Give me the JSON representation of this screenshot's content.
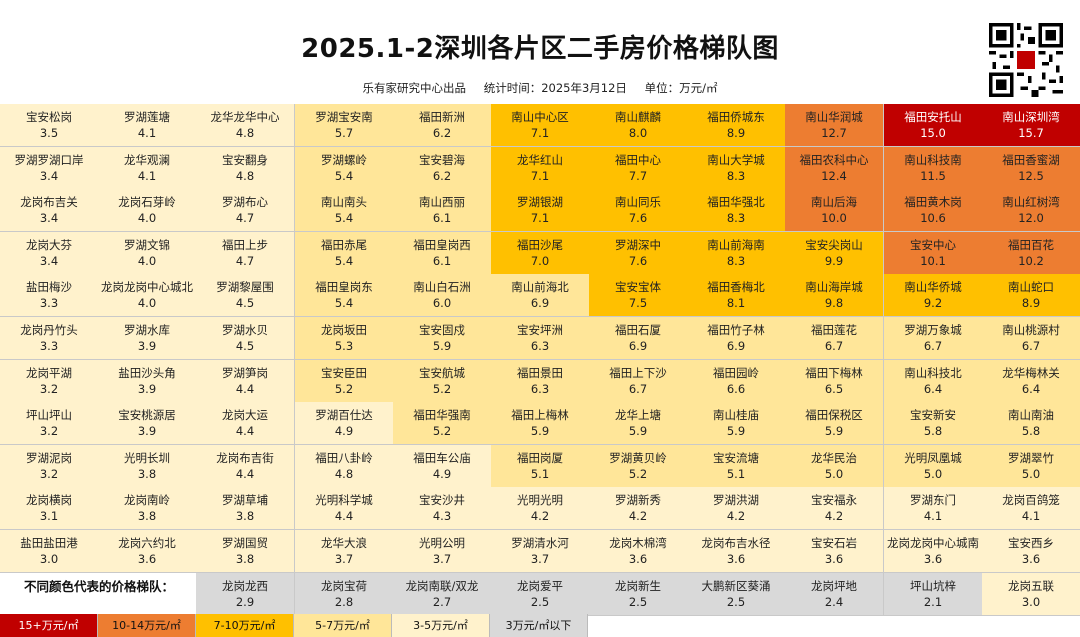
{
  "header": {
    "title": "2025.1-2深圳各片区二手房价格梯队图",
    "org": "乐有家研究中心出品",
    "stat_time": "统计时间：2025年3月12日",
    "unit": "单位：万元/㎡"
  },
  "legend": {
    "caption": "不同颜色代表的价格梯队：",
    "tiers": [
      {
        "label": "15+万元/㎡",
        "color": "#c00000"
      },
      {
        "label": "10-14万元/㎡",
        "color": "#ed7d31"
      },
      {
        "label": "7-10万元/㎡",
        "color": "#ffc000"
      },
      {
        "label": "5-7万元/㎡",
        "color": "#ffe699"
      },
      {
        "label": "3-5万元/㎡",
        "color": "#fff2cc"
      },
      {
        "label": "3万元/㎡以下",
        "color": "#d9d9d9"
      }
    ]
  },
  "chart_data": {
    "type": "table",
    "title": "2025.1-2深圳各片区二手房价格梯队图",
    "unit": "万元/㎡",
    "columns": [
      [
        {
          "name": "宝安松岗",
          "price": "3.5",
          "tier": 5
        },
        {
          "name": "罗湖罗湖口岸",
          "price": "3.4",
          "tier": 5
        },
        {
          "name": "龙岗布吉关",
          "price": "3.4",
          "tier": 5
        },
        {
          "name": "龙岗大芬",
          "price": "3.4",
          "tier": 5
        },
        {
          "name": "盐田梅沙",
          "price": "3.3",
          "tier": 5
        },
        {
          "name": "龙岗丹竹头",
          "price": "3.3",
          "tier": 5
        },
        {
          "name": "龙岗平湖",
          "price": "3.2",
          "tier": 5
        },
        {
          "name": "坪山坪山",
          "price": "3.2",
          "tier": 5
        },
        {
          "name": "罗湖泥岗",
          "price": "3.2",
          "tier": 5
        },
        {
          "name": "龙岗横岗",
          "price": "3.1",
          "tier": 5
        },
        {
          "name": "盐田盐田港",
          "price": "3.0",
          "tier": 5
        }
      ],
      [
        {
          "name": "罗湖莲塘",
          "price": "4.1",
          "tier": 5
        },
        {
          "name": "龙华观澜",
          "price": "4.1",
          "tier": 5
        },
        {
          "name": "龙岗石芽岭",
          "price": "4.0",
          "tier": 5
        },
        {
          "name": "罗湖文锦",
          "price": "4.0",
          "tier": 5
        },
        {
          "name": "龙岗龙岗中心城北",
          "price": "4.0",
          "tier": 5
        },
        {
          "name": "罗湖水库",
          "price": "3.9",
          "tier": 5
        },
        {
          "name": "盐田沙头角",
          "price": "3.9",
          "tier": 5
        },
        {
          "name": "宝安桃源居",
          "price": "3.9",
          "tier": 5
        },
        {
          "name": "光明长圳",
          "price": "3.8",
          "tier": 5
        },
        {
          "name": "龙岗南岭",
          "price": "3.8",
          "tier": 5
        },
        {
          "name": "龙岗六约北",
          "price": "3.6",
          "tier": 5
        }
      ],
      [
        {
          "name": "龙华龙华中心",
          "price": "4.8",
          "tier": 5
        },
        {
          "name": "宝安翻身",
          "price": "4.8",
          "tier": 5
        },
        {
          "name": "罗湖布心",
          "price": "4.7",
          "tier": 5
        },
        {
          "name": "福田上步",
          "price": "4.7",
          "tier": 5
        },
        {
          "name": "罗湖黎屋围",
          "price": "4.5",
          "tier": 5
        },
        {
          "name": "罗湖水贝",
          "price": "4.5",
          "tier": 5
        },
        {
          "name": "罗湖笋岗",
          "price": "4.4",
          "tier": 5
        },
        {
          "name": "龙岗大运",
          "price": "4.4",
          "tier": 5
        },
        {
          "name": "龙岗布吉街",
          "price": "4.4",
          "tier": 5
        },
        {
          "name": "罗湖草埔",
          "price": "3.8",
          "tier": 5
        },
        {
          "name": "罗湖国贸",
          "price": "3.8",
          "tier": 5
        }
      ],
      [
        {
          "name": "罗湖宝安南",
          "price": "5.7",
          "tier": 4
        },
        {
          "name": "罗湖螺岭",
          "price": "5.4",
          "tier": 4
        },
        {
          "name": "南山南头",
          "price": "5.4",
          "tier": 4
        },
        {
          "name": "福田赤尾",
          "price": "5.4",
          "tier": 4
        },
        {
          "name": "福田皇岗东",
          "price": "5.4",
          "tier": 4
        },
        {
          "name": "龙岗坂田",
          "price": "5.3",
          "tier": 4
        },
        {
          "name": "宝安臣田",
          "price": "5.2",
          "tier": 4
        },
        {
          "name": "罗湖百仕达",
          "price": "4.9",
          "tier": 5
        },
        {
          "name": "福田八卦岭",
          "price": "4.8",
          "tier": 5
        },
        {
          "name": "光明科学城",
          "price": "4.4",
          "tier": 5
        },
        {
          "name": "龙华大浪",
          "price": "3.7",
          "tier": 5
        }
      ],
      [
        {
          "name": "福田新洲",
          "price": "6.2",
          "tier": 4
        },
        {
          "name": "宝安碧海",
          "price": "6.2",
          "tier": 4
        },
        {
          "name": "南山西丽",
          "price": "6.1",
          "tier": 4
        },
        {
          "name": "福田皇岗西",
          "price": "6.1",
          "tier": 4
        },
        {
          "name": "南山白石洲",
          "price": "6.0",
          "tier": 4
        },
        {
          "name": "宝安固戍",
          "price": "5.9",
          "tier": 4
        },
        {
          "name": "宝安航城",
          "price": "5.2",
          "tier": 4
        },
        {
          "name": "福田华强南",
          "price": "5.2",
          "tier": 4
        },
        {
          "name": "福田车公庙",
          "price": "4.9",
          "tier": 5
        },
        {
          "name": "宝安沙井",
          "price": "4.3",
          "tier": 5
        },
        {
          "name": "光明公明",
          "price": "3.7",
          "tier": 5
        }
      ],
      [
        {
          "name": "南山中心区",
          "price": "7.1",
          "tier": 3
        },
        {
          "name": "龙华红山",
          "price": "7.1",
          "tier": 3
        },
        {
          "name": "罗湖银湖",
          "price": "7.1",
          "tier": 3
        },
        {
          "name": "福田沙尾",
          "price": "7.0",
          "tier": 3
        },
        {
          "name": "南山前海北",
          "price": "6.9",
          "tier": 4
        },
        {
          "name": "宝安坪洲",
          "price": "6.3",
          "tier": 4
        },
        {
          "name": "福田景田",
          "price": "6.3",
          "tier": 4
        },
        {
          "name": "福田上梅林",
          "price": "5.9",
          "tier": 4
        },
        {
          "name": "福田岗厦",
          "price": "5.1",
          "tier": 4
        },
        {
          "name": "光明光明",
          "price": "4.2",
          "tier": 5
        },
        {
          "name": "罗湖清水河",
          "price": "3.7",
          "tier": 5
        }
      ],
      [
        {
          "name": "南山麒麟",
          "price": "8.0",
          "tier": 3
        },
        {
          "name": "福田中心",
          "price": "7.7",
          "tier": 3
        },
        {
          "name": "南山同乐",
          "price": "7.6",
          "tier": 3
        },
        {
          "name": "罗湖深中",
          "price": "7.6",
          "tier": 3
        },
        {
          "name": "宝安宝体",
          "price": "7.5",
          "tier": 3
        },
        {
          "name": "福田石厦",
          "price": "6.9",
          "tier": 4
        },
        {
          "name": "福田上下沙",
          "price": "6.7",
          "tier": 4
        },
        {
          "name": "龙华上塘",
          "price": "5.9",
          "tier": 4
        },
        {
          "name": "罗湖黄贝岭",
          "price": "5.2",
          "tier": 4
        },
        {
          "name": "罗湖新秀",
          "price": "4.2",
          "tier": 5
        },
        {
          "name": "龙岗木棉湾",
          "price": "3.6",
          "tier": 5
        }
      ],
      [
        {
          "name": "福田侨城东",
          "price": "8.9",
          "tier": 3
        },
        {
          "name": "南山大学城",
          "price": "8.3",
          "tier": 3
        },
        {
          "name": "福田华强北",
          "price": "8.3",
          "tier": 3
        },
        {
          "name": "南山前海南",
          "price": "8.3",
          "tier": 3
        },
        {
          "name": "福田香梅北",
          "price": "8.1",
          "tier": 3
        },
        {
          "name": "福田竹子林",
          "price": "6.9",
          "tier": 4
        },
        {
          "name": "福田园岭",
          "price": "6.6",
          "tier": 4
        },
        {
          "name": "南山桂庙",
          "price": "5.9",
          "tier": 4
        },
        {
          "name": "宝安流塘",
          "price": "5.1",
          "tier": 4
        },
        {
          "name": "罗湖洪湖",
          "price": "4.2",
          "tier": 5
        },
        {
          "name": "龙岗布吉水径",
          "price": "3.6",
          "tier": 5
        }
      ],
      [
        {
          "name": "南山华润城",
          "price": "12.7",
          "tier": 2
        },
        {
          "name": "福田农科中心",
          "price": "12.4",
          "tier": 2
        },
        {
          "name": "南山后海",
          "price": "10.0",
          "tier": 2
        },
        {
          "name": "宝安尖岗山",
          "price": "9.9",
          "tier": 3
        },
        {
          "name": "南山海岸城",
          "price": "9.8",
          "tier": 3
        },
        {
          "name": "福田莲花",
          "price": "6.7",
          "tier": 4
        },
        {
          "name": "福田下梅林",
          "price": "6.5",
          "tier": 4
        },
        {
          "name": "福田保税区",
          "price": "5.9",
          "tier": 4
        },
        {
          "name": "龙华民治",
          "price": "5.0",
          "tier": 4
        },
        {
          "name": "宝安福永",
          "price": "4.2",
          "tier": 5
        },
        {
          "name": "宝安石岩",
          "price": "3.6",
          "tier": 5
        }
      ],
      [
        {
          "name": "福田安托山",
          "price": "15.0",
          "tier": 1
        },
        {
          "name": "南山科技南",
          "price": "11.5",
          "tier": 2
        },
        {
          "name": "福田黄木岗",
          "price": "10.6",
          "tier": 2
        },
        {
          "name": "宝安中心",
          "price": "10.1",
          "tier": 2
        },
        {
          "name": "南山华侨城",
          "price": "9.2",
          "tier": 3
        },
        {
          "name": "罗湖万象城",
          "price": "6.7",
          "tier": 4
        },
        {
          "name": "南山科技北",
          "price": "6.4",
          "tier": 4
        },
        {
          "name": "宝安新安",
          "price": "5.8",
          "tier": 4
        },
        {
          "name": "光明凤凰城",
          "price": "5.0",
          "tier": 4
        },
        {
          "name": "罗湖东门",
          "price": "4.1",
          "tier": 5
        },
        {
          "name": "龙岗龙岗中心城南",
          "price": "3.6",
          "tier": 5
        }
      ],
      [
        {
          "name": "南山深圳湾",
          "price": "15.7",
          "tier": 1
        },
        {
          "name": "福田香蜜湖",
          "price": "12.5",
          "tier": 2
        },
        {
          "name": "南山红树湾",
          "price": "12.0",
          "tier": 2
        },
        {
          "name": "福田百花",
          "price": "10.2",
          "tier": 2
        },
        {
          "name": "南山蛇口",
          "price": "8.9",
          "tier": 3
        },
        {
          "name": "南山桃源村",
          "price": "6.7",
          "tier": 4
        },
        {
          "name": "龙华梅林关",
          "price": "6.4",
          "tier": 4
        },
        {
          "name": "南山南油",
          "price": "5.8",
          "tier": 4
        },
        {
          "name": "罗湖翠竹",
          "price": "5.0",
          "tier": 4
        },
        {
          "name": "龙岗百鸽笼",
          "price": "4.1",
          "tier": 5
        },
        {
          "name": "宝安西乡",
          "price": "3.6",
          "tier": 5
        }
      ]
    ],
    "bottom_row": [
      {
        "name": "龙岗龙西",
        "price": "2.9",
        "tier": 6
      },
      {
        "name": "龙岗宝荷",
        "price": "2.8",
        "tier": 6
      },
      {
        "name": "龙岗南联/双龙",
        "price": "2.7",
        "tier": 6
      },
      {
        "name": "龙岗爱平",
        "price": "2.5",
        "tier": 6
      },
      {
        "name": "龙岗新生",
        "price": "2.5",
        "tier": 6
      },
      {
        "name": "大鹏新区葵涌",
        "price": "2.5",
        "tier": 6
      },
      {
        "name": "龙岗坪地",
        "price": "2.4",
        "tier": 6
      },
      {
        "name": "坪山坑梓",
        "price": "2.1",
        "tier": 6
      },
      {
        "name": "龙岗五联",
        "price": "3.0",
        "tier": 5
      }
    ]
  }
}
